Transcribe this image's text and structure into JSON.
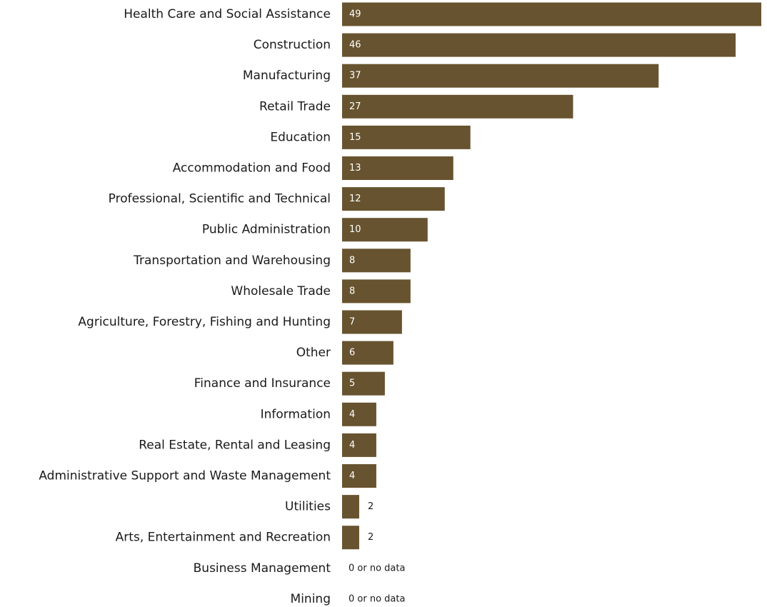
{
  "chart_data": {
    "type": "bar",
    "orientation": "horizontal",
    "bar_color": "#67532f",
    "no_data_label": "0 or no data",
    "categories": [
      "Health Care and Social Assistance",
      "Construction",
      "Manufacturing",
      "Retail Trade",
      "Education",
      "Accommodation and Food",
      "Professional, Scientific and Technical",
      "Public Administration",
      "Transportation and Warehousing",
      "Wholesale Trade",
      "Agriculture, Forestry, Fishing and Hunting",
      "Other",
      "Finance and Insurance",
      "Information",
      "Real Estate, Rental and Leasing",
      "Administrative Support and Waste Management",
      "Utilities",
      "Arts, Entertainment and Recreation",
      "Business Management",
      "Mining"
    ],
    "values": [
      49,
      46,
      37,
      27,
      15,
      13,
      12,
      10,
      8,
      8,
      7,
      6,
      5,
      4,
      4,
      4,
      2,
      2,
      0,
      0
    ],
    "grid": false,
    "legend": "none"
  }
}
